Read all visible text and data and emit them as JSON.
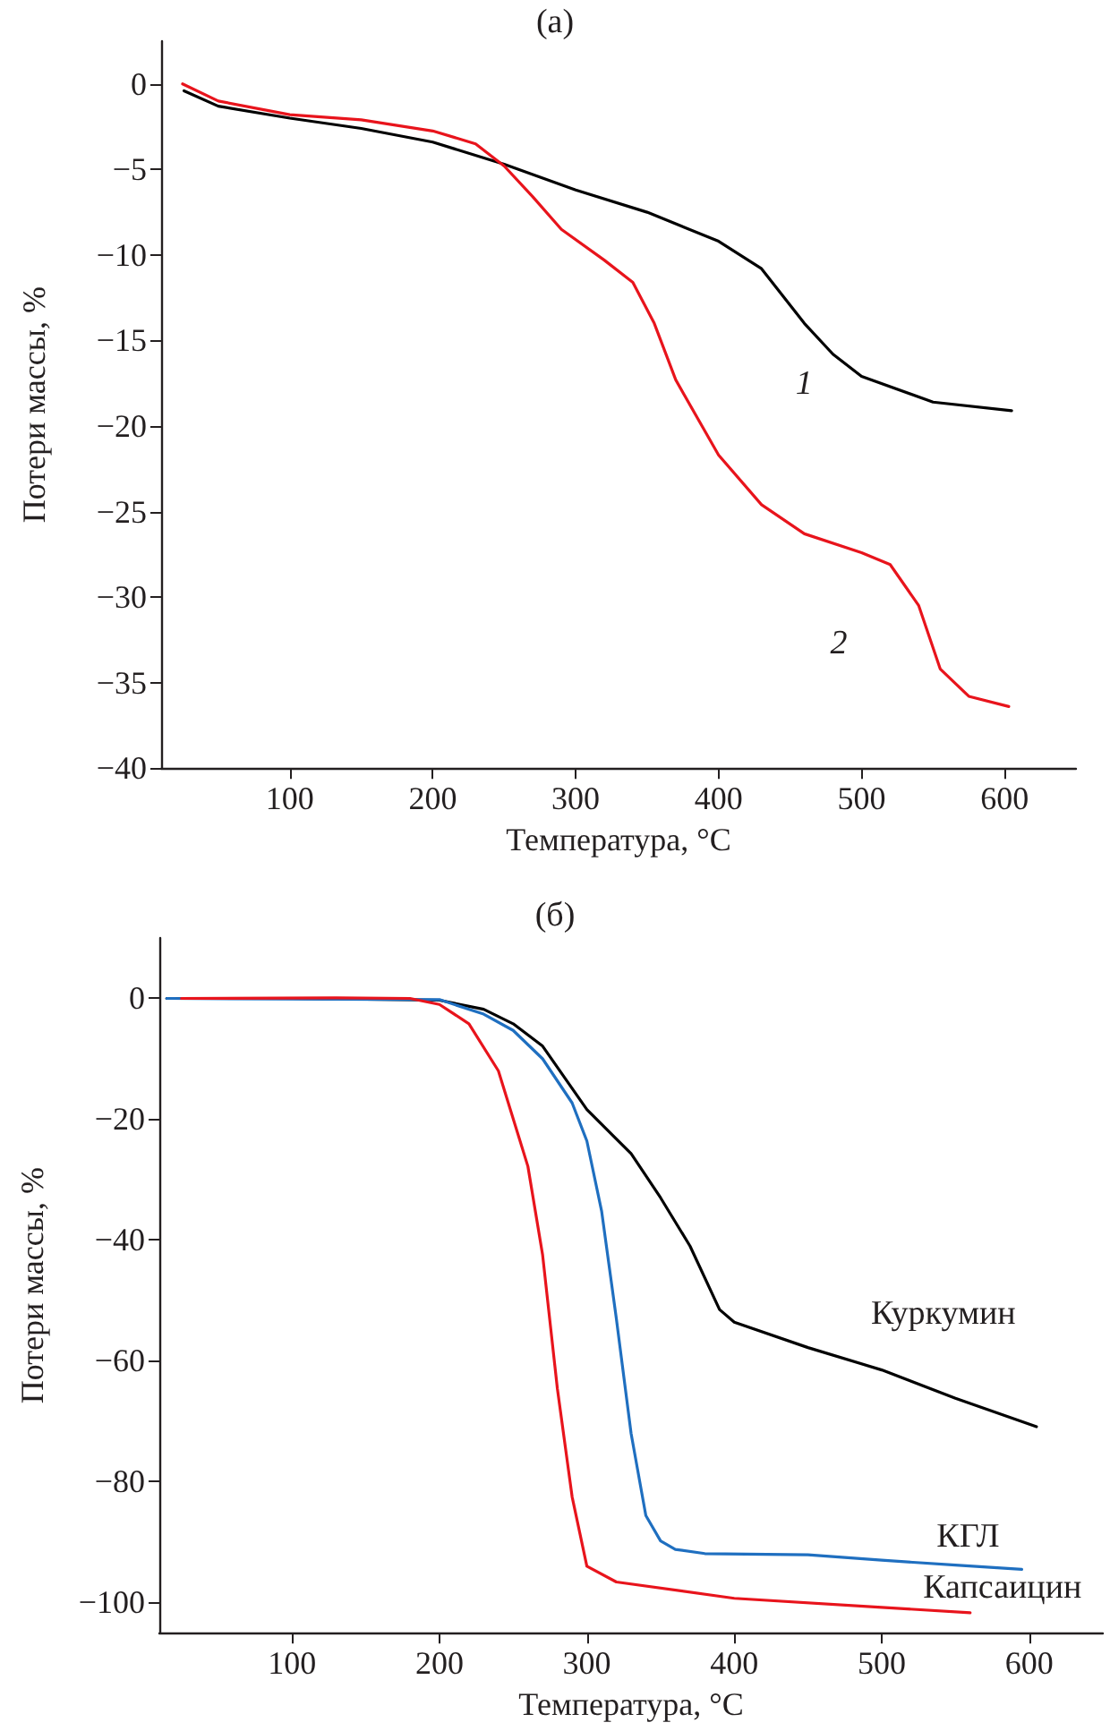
{
  "chart_data": [
    {
      "type": "line",
      "title": "(а)",
      "xlabel": "Температура, °C",
      "ylabel": "Потери массы, %",
      "xlim": [
        10,
        650
      ],
      "ylim": [
        -40,
        2.5
      ],
      "xticks": [
        100,
        200,
        300,
        400,
        500,
        600
      ],
      "yticks": [
        0,
        -5,
        -10,
        -15,
        -20,
        -25,
        -30,
        -35,
        -40
      ],
      "grid": false,
      "legend": false,
      "marker": "none",
      "line_style": "solid",
      "series": [
        {
          "name": "1",
          "color": "#000000",
          "x": [
            26,
            50,
            100,
            150,
            200,
            250,
            300,
            350,
            400,
            430,
            460,
            480,
            500,
            550,
            605
          ],
          "values": [
            -0.4,
            -1.3,
            -2.0,
            -2.6,
            -3.4,
            -4.7,
            -6.2,
            -7.5,
            -9.2,
            -10.8,
            -14,
            -15.8,
            -17.1,
            -18.6,
            -19.1
          ]
        },
        {
          "name": "2",
          "color": "#e8141c",
          "x": [
            25,
            50,
            100,
            150,
            200,
            230,
            250,
            270,
            290,
            320,
            340,
            355,
            370,
            400,
            430,
            460,
            500,
            520,
            540,
            555,
            575,
            603
          ],
          "values": [
            0,
            -1.0,
            -1.8,
            -2.1,
            -2.75,
            -3.5,
            -4.8,
            -6.6,
            -8.5,
            -10.3,
            -11.6,
            -14,
            -17.3,
            -21.7,
            -24.6,
            -26.3,
            -27.4,
            -28.1,
            -30.5,
            -34.2,
            -35.8,
            -36.4
          ]
        }
      ]
    },
    {
      "type": "line",
      "title": "(б)",
      "xlabel": "Температура, °C",
      "ylabel": "Потери массы, %",
      "xlim": [
        10,
        650
      ],
      "ylim": [
        -105,
        10
      ],
      "xticks": [
        100,
        200,
        300,
        400,
        500,
        600
      ],
      "yticks": [
        0,
        -20,
        -40,
        -60,
        -80,
        -100
      ],
      "grid": false,
      "legend": false,
      "marker": "none",
      "line_style": "solid",
      "series": [
        {
          "name": "Куркумин",
          "color": "#000000",
          "x": [
            15,
            100,
            200,
            230,
            250,
            270,
            300,
            330,
            350,
            370,
            390,
            400,
            450,
            500,
            550,
            605
          ],
          "values": [
            0,
            0,
            -0.3,
            -1.8,
            -4.2,
            -7.9,
            -18.4,
            -25.7,
            -33,
            -41,
            -51.5,
            -53.6,
            -57.8,
            -61.5,
            -66.2,
            -70.9
          ]
        },
        {
          "name": "КГЛ",
          "color": "#1f6fc0",
          "x": [
            15,
            200,
            230,
            250,
            270,
            290,
            300,
            310,
            320,
            330,
            340,
            350,
            360,
            380,
            450,
            500,
            550,
            595
          ],
          "values": [
            0,
            -0.2,
            -2.6,
            -5.3,
            -10,
            -17.3,
            -23.6,
            -35.2,
            -53,
            -72,
            -85.6,
            -89.8,
            -91.2,
            -91.9,
            -92.1,
            -93,
            -93.8,
            -94.5
          ]
        },
        {
          "name": "Капсаицин",
          "color": "#e8141c",
          "x": [
            25,
            130,
            180,
            200,
            220,
            240,
            260,
            270,
            280,
            290,
            300,
            320,
            400,
            500,
            560
          ],
          "values": [
            0,
            0.1,
            0,
            -1,
            -4.2,
            -12,
            -27.8,
            -42.5,
            -64.6,
            -82.5,
            -94,
            -96.6,
            -99.3,
            -100.8,
            -101.7
          ]
        }
      ]
    }
  ]
}
